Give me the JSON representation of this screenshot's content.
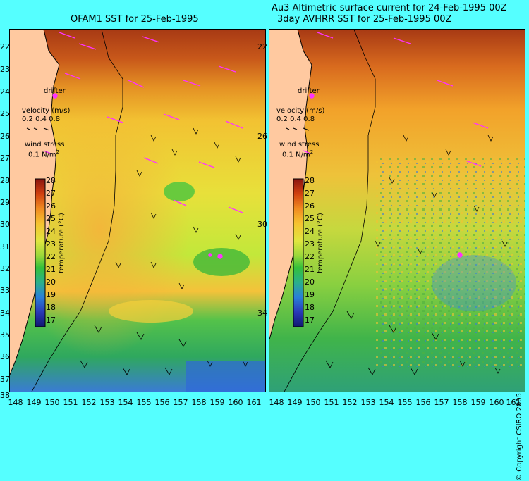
{
  "left_panel": {
    "title": "OFAM1 SST for 25-Feb-1995"
  },
  "right_panel": {
    "title_line1": "Au3 Altimetric surface current for 24-Feb-1995 00Z",
    "title_line2": "3day AVHRR SST for 25-Feb-1995 00Z"
  },
  "legend": {
    "drifter": "drifter",
    "velocity_title": "velocity (m/s)",
    "velocity_scale": "0.2 0.4 0.8",
    "wind_title": "wind stress",
    "wind_value": "0.1 N/m",
    "wind_sup": "2",
    "colorbar_label": "temperature (°C)"
  },
  "colorbar_ticks": [
    "28",
    "27",
    "26",
    "25",
    "24",
    "23",
    "22",
    "21",
    "20",
    "19",
    "18",
    "17"
  ],
  "lat_ticks": [
    "22",
    "23",
    "24",
    "25",
    "26",
    "27",
    "28",
    "29",
    "30",
    "31",
    "32",
    "33",
    "34",
    "35",
    "36",
    "37",
    "38"
  ],
  "lon_ticks": [
    "148",
    "149",
    "150",
    "151",
    "152",
    "153",
    "154",
    "155",
    "156",
    "157",
    "158",
    "159",
    "160",
    "161"
  ],
  "copyright": "© Copyright CSIRO 2005",
  "colors": {
    "background": "#55ffff",
    "land": "#ffc9a0",
    "drifter": "#ff33ff"
  }
}
